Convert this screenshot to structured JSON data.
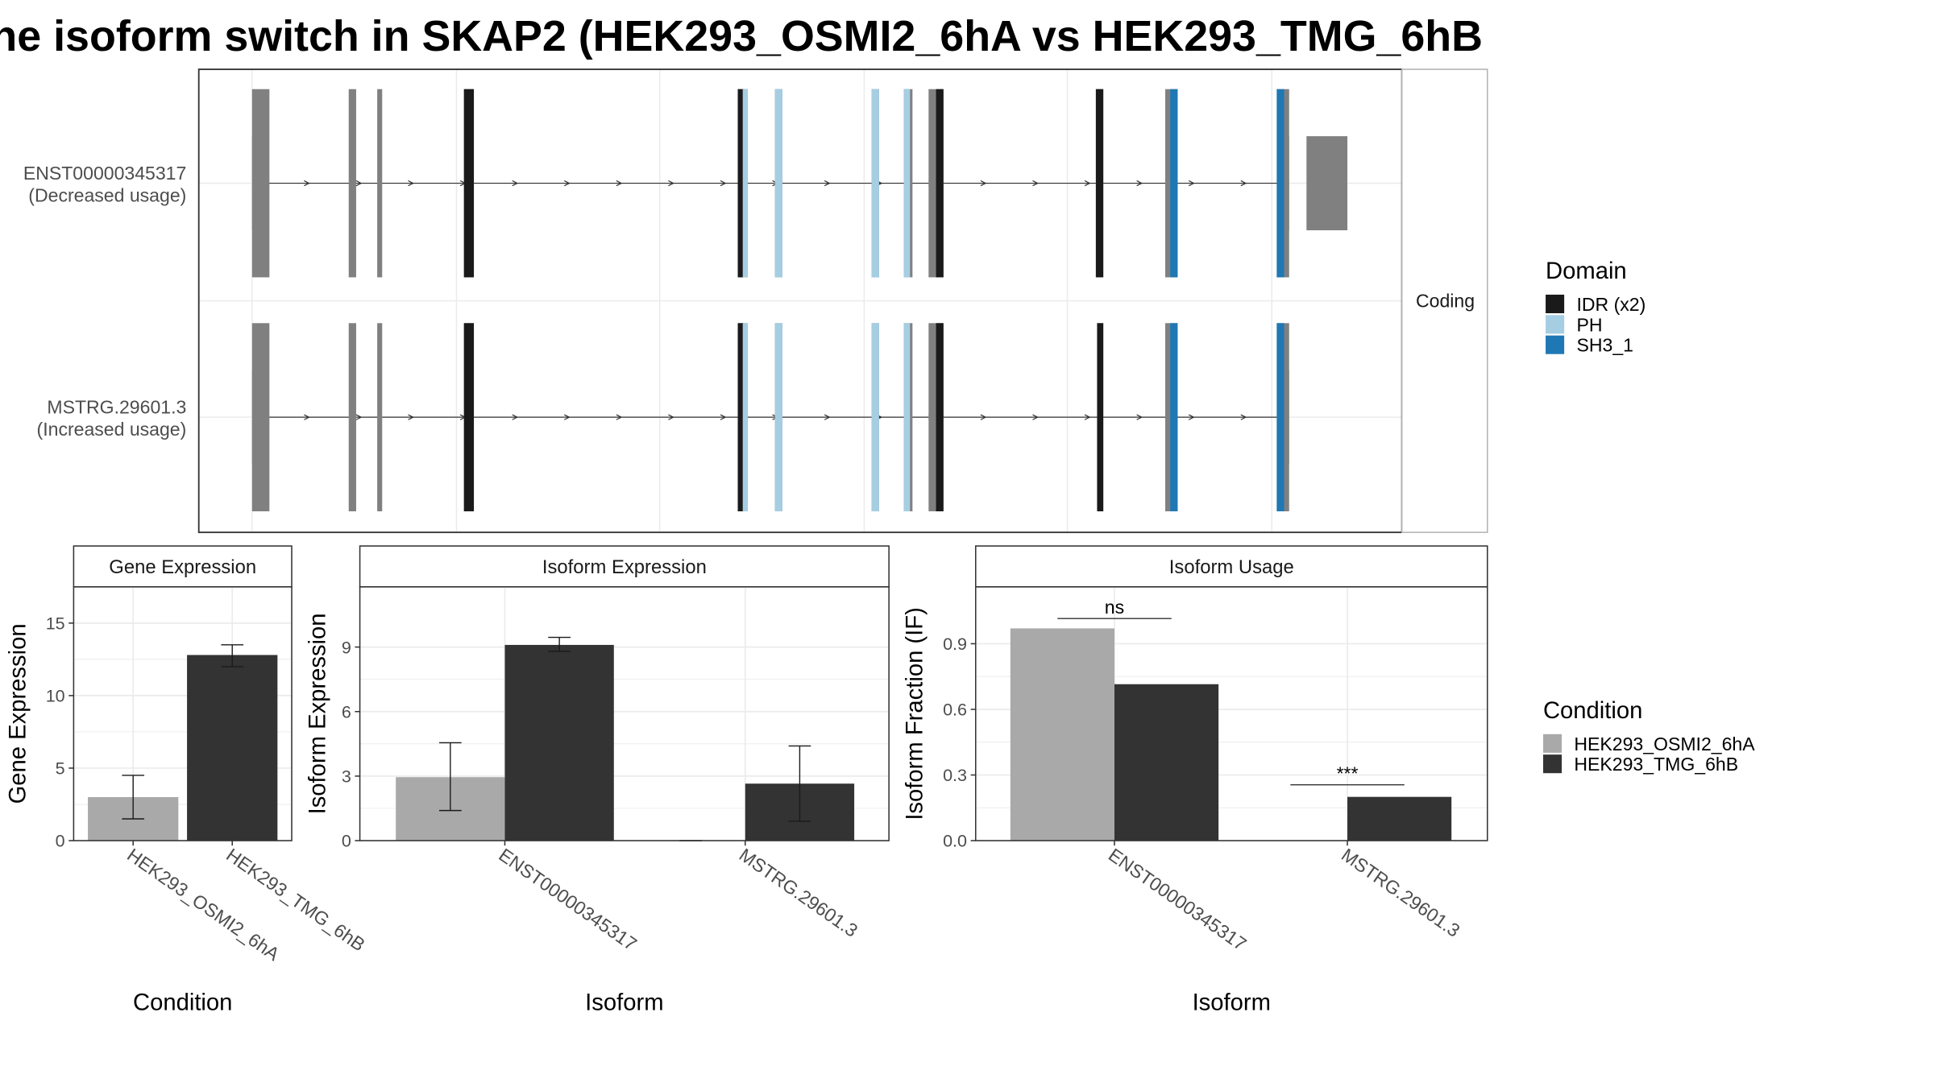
{
  "title": "he isoform switch in SKAP2 (HEK293_OSMI2_6hA vs HEK293_TMG_6hB",
  "colors": {
    "osmi": "#a9a9a9",
    "tmg": "#333333",
    "exon": "#808080",
    "idr": "#1a1a1a",
    "ph": "#a6cee3",
    "sh3": "#1f78b4",
    "grid": "#ebebeb"
  },
  "chart_data": [
    {
      "type": "gene-structure",
      "strip_label": "Coding",
      "transcripts": [
        {
          "id": "ENST00000345317",
          "usage_label": "(Decreased usage)",
          "exons": [
            [
              203,
              217
            ],
            [
              281,
              287
            ],
            [
              304,
              308
            ],
            [
              374,
              382
            ],
            [
              595,
              603
            ],
            [
              625,
              631
            ],
            [
              703,
              709
            ],
            [
              729,
              736
            ],
            [
              749,
              761
            ],
            [
              884,
              890
            ],
            [
              940,
              950
            ],
            [
              1030,
              1040
            ]
          ],
          "utr": [
            [
              203,
              212
            ],
            [
              1036,
              1040
            ],
            [
              1054,
              1087
            ]
          ],
          "domains": [
            {
              "type": "IDR",
              "range": [
                374,
                382
              ]
            },
            {
              "type": "IDR",
              "range": [
                595,
                600
              ]
            },
            {
              "type": "PH",
              "range": [
                599,
                603
              ]
            },
            {
              "type": "PH",
              "range": [
                625,
                631
              ]
            },
            {
              "type": "PH",
              "range": [
                703,
                709
              ]
            },
            {
              "type": "PH",
              "range": [
                729,
                734
              ]
            },
            {
              "type": "IDR",
              "range": [
                755,
                761
              ]
            },
            {
              "type": "IDR",
              "range": [
                884,
                890
              ]
            },
            {
              "type": "SH3",
              "range": [
                944,
                950
              ]
            },
            {
              "type": "SH3",
              "range": [
                1030,
                1036
              ]
            }
          ]
        },
        {
          "id": "MSTRG.29601.3",
          "usage_label": "(Increased usage)",
          "exons": [
            [
              203,
              217
            ],
            [
              281,
              287
            ],
            [
              304,
              308
            ],
            [
              374,
              382
            ],
            [
              595,
              603
            ],
            [
              625,
              631
            ],
            [
              703,
              709
            ],
            [
              729,
              736
            ],
            [
              749,
              761
            ],
            [
              885,
              890
            ],
            [
              940,
              950
            ],
            [
              1030,
              1040
            ]
          ],
          "utr": [
            [
              203,
              212
            ],
            [
              1036,
              1040
            ]
          ],
          "domains": [
            {
              "type": "IDR",
              "range": [
                374,
                382
              ]
            },
            {
              "type": "IDR",
              "range": [
                595,
                600
              ]
            },
            {
              "type": "PH",
              "range": [
                599,
                603
              ]
            },
            {
              "type": "PH",
              "range": [
                625,
                631
              ]
            },
            {
              "type": "PH",
              "range": [
                703,
                709
              ]
            },
            {
              "type": "PH",
              "range": [
                729,
                734
              ]
            },
            {
              "type": "IDR",
              "range": [
                755,
                761
              ]
            },
            {
              "type": "IDR",
              "range": [
                885,
                890
              ]
            },
            {
              "type": "SH3",
              "range": [
                944,
                950
              ]
            },
            {
              "type": "SH3",
              "range": [
                1030,
                1036
              ]
            }
          ]
        }
      ]
    },
    {
      "type": "bar",
      "title": "Gene Expression",
      "xlabel": "Condition",
      "ylabel": "Gene Expression",
      "ylim": [
        0,
        17.5
      ],
      "yticks": [
        0,
        5,
        10,
        15
      ],
      "categories": [
        "HEK293_OSMI2_6hA",
        "HEK293_TMG_6hB"
      ],
      "series": [
        {
          "values": [
            3.0,
            12.8
          ],
          "err_low": [
            1.5,
            12.0
          ],
          "err_high": [
            4.5,
            13.5
          ]
        }
      ]
    },
    {
      "type": "bar",
      "title": "Isoform Expression",
      "xlabel": "Isoform",
      "ylabel": "Isoform Expression",
      "ylim": [
        0,
        11.8
      ],
      "yticks": [
        0,
        3,
        6,
        9
      ],
      "categories": [
        "ENST00000345317",
        "MSTRG.29601.3"
      ],
      "series": [
        {
          "condition": "HEK293_OSMI2_6hA",
          "values": [
            2.95,
            0.0
          ],
          "err_low": [
            1.4,
            0.0
          ],
          "err_high": [
            4.55,
            0.0
          ]
        },
        {
          "condition": "HEK293_TMG_6hB",
          "values": [
            9.1,
            2.65
          ],
          "err_low": [
            8.8,
            0.9
          ],
          "err_high": [
            9.45,
            4.4
          ]
        }
      ]
    },
    {
      "type": "bar",
      "title": "Isoform Usage",
      "xlabel": "Isoform",
      "ylabel": "Isoform Fraction (IF)",
      "ylim": [
        0,
        1.16
      ],
      "yticks": [
        0.0,
        0.3,
        0.6,
        0.9
      ],
      "ytick_labels": [
        "0.0",
        "0.3",
        "0.6",
        "0.9"
      ],
      "categories": [
        "ENST00000345317",
        "MSTRG.29601.3"
      ],
      "series": [
        {
          "condition": "HEK293_OSMI2_6hA",
          "values": [
            0.97,
            0.0
          ]
        },
        {
          "condition": "HEK293_TMG_6hB",
          "values": [
            0.715,
            0.2
          ]
        }
      ],
      "significance": [
        {
          "label": "ns",
          "level": 1.015
        },
        {
          "label": "***",
          "level": 0.255
        }
      ]
    }
  ],
  "legends": {
    "domain": {
      "title": "Domain",
      "entries": [
        {
          "label": "IDR (x2)",
          "color": "#1a1a1a"
        },
        {
          "label": "PH",
          "color": "#a6cee3"
        },
        {
          "label": "SH3_1",
          "color": "#1f78b4"
        }
      ]
    },
    "condition": {
      "title": "Condition",
      "entries": [
        {
          "label": "HEK293_OSMI2_6hA",
          "color": "#a9a9a9"
        },
        {
          "label": "HEK293_TMG_6hB",
          "color": "#333333"
        }
      ]
    }
  }
}
